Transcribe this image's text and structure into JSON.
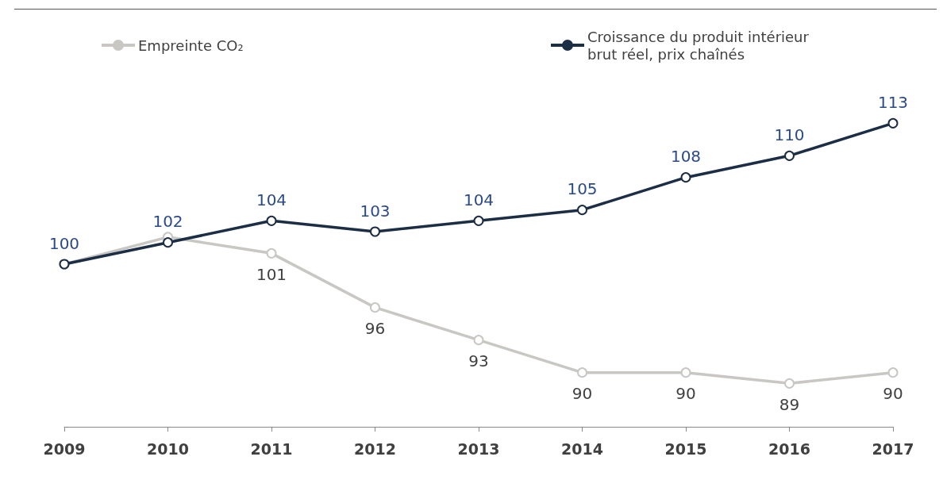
{
  "chart_data": {
    "type": "line",
    "categories": [
      "2009",
      "2010",
      "2011",
      "2012",
      "2013",
      "2014",
      "2015",
      "2016",
      "2017"
    ],
    "series": [
      {
        "name": "Empreinte CO₂",
        "color": "#c8c7c4",
        "values": [
          100,
          102.5,
          101,
          96,
          93,
          90,
          90,
          89,
          90
        ],
        "value_labels": [
          null,
          null,
          "101",
          "96",
          "93",
          "90",
          "90",
          "89",
          "90"
        ]
      },
      {
        "name": "Croissance du produit intérieur brut réel, prix chaînés",
        "color": "#1c2e45",
        "values": [
          100,
          102,
          104,
          103,
          104,
          105,
          108,
          110,
          113
        ],
        "value_labels": [
          "100",
          "102",
          "104",
          "103",
          "104",
          "105",
          "108",
          "110",
          "113"
        ]
      }
    ],
    "marker": "circle",
    "line_style": "solid",
    "legend": "top",
    "grid": false
  }
}
